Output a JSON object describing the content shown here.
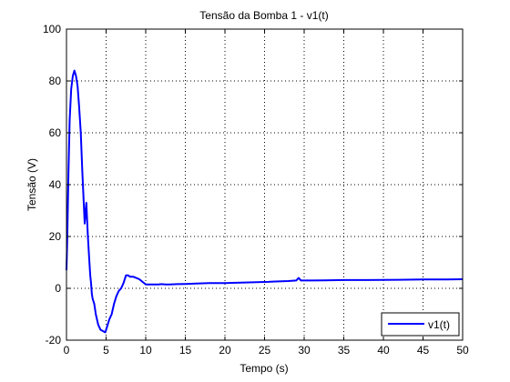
{
  "chart_data": {
    "type": "line",
    "title": "Tensão da Bomba 1 - v1(t)",
    "xlabel": "Tempo (s)",
    "ylabel": "Tensão (V)",
    "xlim": [
      0,
      50
    ],
    "ylim": [
      -20,
      100
    ],
    "xticks": [
      0,
      5,
      10,
      15,
      20,
      25,
      30,
      35,
      40,
      45,
      50
    ],
    "yticks": [
      -20,
      0,
      20,
      40,
      60,
      80,
      100
    ],
    "grid": true,
    "legend_position": "bottom-right",
    "series": [
      {
        "name": "v1(t)",
        "color": "#0000ff",
        "x": [
          0.0,
          0.1,
          0.25,
          0.4,
          0.6,
          0.8,
          1.0,
          1.2,
          1.4,
          1.6,
          1.8,
          2.0,
          2.1,
          2.3,
          2.5,
          2.7,
          2.9,
          3.0,
          3.1,
          3.2,
          3.3,
          3.5,
          3.7,
          4.0,
          4.3,
          4.6,
          4.9,
          5.1,
          5.4,
          5.7,
          6.0,
          6.3,
          6.6,
          6.9,
          7.2,
          7.5,
          7.8,
          8.0,
          8.4,
          8.8,
          9.2,
          9.6,
          10.0,
          10.4,
          10.8,
          11.2,
          11.6,
          12.0,
          12.5,
          13.0,
          14.0,
          15.0,
          16.0,
          18.0,
          20.0,
          22.0,
          24.0,
          25.5,
          26.0,
          28.0,
          29.0,
          29.3,
          29.6,
          31.0,
          32.5,
          35.0,
          38.0,
          42.0,
          45.0,
          48.0,
          50.0
        ],
        "y": [
          7,
          20,
          45,
          65,
          77,
          82,
          84,
          82,
          78,
          70,
          60,
          45,
          38,
          25,
          33,
          20,
          10,
          5,
          2,
          -2,
          -4,
          -6,
          -10,
          -14,
          -16,
          -16.5,
          -17,
          -15,
          -12,
          -10,
          -6,
          -3,
          -1,
          0,
          2,
          5,
          5,
          4.5,
          4.5,
          4,
          3.5,
          2.5,
          1.5,
          1.5,
          1.5,
          1.5,
          1.5,
          1.6,
          1.5,
          1.5,
          1.6,
          1.7,
          1.8,
          2.0,
          2.0,
          2.2,
          2.4,
          2.5,
          2.6,
          2.8,
          3.0,
          4.0,
          3.0,
          3.0,
          3.1,
          3.2,
          3.2,
          3.3,
          3.4,
          3.4,
          3.5
        ]
      }
    ]
  }
}
